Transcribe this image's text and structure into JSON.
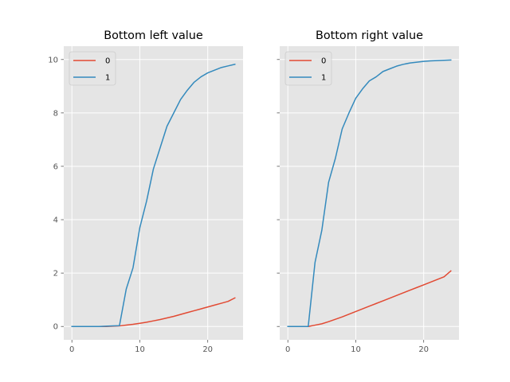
{
  "figure": {
    "background": "#ffffff",
    "axes_facecolor": "#e5e5e5",
    "grid_color": "#ffffff",
    "style": "ggplot"
  },
  "chart_data": [
    {
      "type": "line",
      "title": "Bottom left value",
      "xlabel": "",
      "ylabel": "",
      "xlim": [
        -1.2,
        25.2
      ],
      "ylim": [
        -0.5,
        10.5
      ],
      "xticks": [
        0,
        10,
        20
      ],
      "yticks": [
        0,
        2,
        4,
        6,
        8,
        10
      ],
      "grid": true,
      "legend": {
        "position": "upper-left",
        "entries": [
          "0",
          "1"
        ]
      },
      "series": [
        {
          "name": "0",
          "color": "#E24A33",
          "x": [
            0,
            1,
            2,
            3,
            4,
            5,
            6,
            7,
            8,
            9,
            10,
            11,
            12,
            13,
            14,
            15,
            16,
            17,
            18,
            19,
            20,
            21,
            22,
            23,
            24
          ],
          "y": [
            0,
            0,
            0,
            0,
            0,
            0,
            0.01,
            0.02,
            0.05,
            0.08,
            0.12,
            0.16,
            0.21,
            0.26,
            0.32,
            0.38,
            0.45,
            0.52,
            0.59,
            0.66,
            0.73,
            0.8,
            0.87,
            0.94,
            1.07
          ]
        },
        {
          "name": "1",
          "color": "#348ABD",
          "x": [
            0,
            1,
            2,
            3,
            4,
            5,
            6,
            7,
            8,
            9,
            10,
            11,
            12,
            13,
            14,
            15,
            16,
            17,
            18,
            19,
            20,
            21,
            22,
            23,
            24
          ],
          "y": [
            0,
            0,
            0,
            0,
            0,
            0.01,
            0.02,
            0.03,
            1.4,
            2.2,
            3.7,
            4.7,
            5.9,
            6.7,
            7.5,
            8.0,
            8.5,
            8.85,
            9.15,
            9.35,
            9.5,
            9.6,
            9.7,
            9.76,
            9.82
          ]
        }
      ]
    },
    {
      "type": "line",
      "title": "Bottom right value",
      "xlabel": "",
      "ylabel": "",
      "xlim": [
        -1.2,
        25.2
      ],
      "ylim": [
        -0.5,
        10.5
      ],
      "xticks": [
        0,
        10,
        20
      ],
      "yticks": [
        0,
        2,
        4,
        6,
        8,
        10
      ],
      "grid": true,
      "legend": {
        "position": "upper-left",
        "entries": [
          "0",
          "1"
        ]
      },
      "series": [
        {
          "name": "0",
          "color": "#E24A33",
          "x": [
            0,
            1,
            2,
            3,
            4,
            5,
            6,
            7,
            8,
            9,
            10,
            11,
            12,
            13,
            14,
            15,
            16,
            17,
            18,
            19,
            20,
            21,
            22,
            23,
            24
          ],
          "y": [
            0,
            0,
            0,
            0,
            0.05,
            0.1,
            0.18,
            0.27,
            0.36,
            0.46,
            0.56,
            0.66,
            0.76,
            0.86,
            0.96,
            1.06,
            1.16,
            1.26,
            1.36,
            1.46,
            1.56,
            1.66,
            1.76,
            1.86,
            2.08
          ]
        },
        {
          "name": "1",
          "color": "#348ABD",
          "x": [
            0,
            1,
            2,
            3,
            4,
            5,
            6,
            7,
            8,
            9,
            10,
            11,
            12,
            13,
            14,
            15,
            16,
            17,
            18,
            19,
            20,
            21,
            22,
            23,
            24
          ],
          "y": [
            0,
            0,
            0,
            0,
            2.4,
            3.6,
            5.4,
            6.3,
            7.4,
            8.0,
            8.55,
            8.9,
            9.2,
            9.35,
            9.55,
            9.65,
            9.75,
            9.82,
            9.87,
            9.9,
            9.93,
            9.95,
            9.96,
            9.97,
            9.98
          ]
        }
      ]
    }
  ]
}
